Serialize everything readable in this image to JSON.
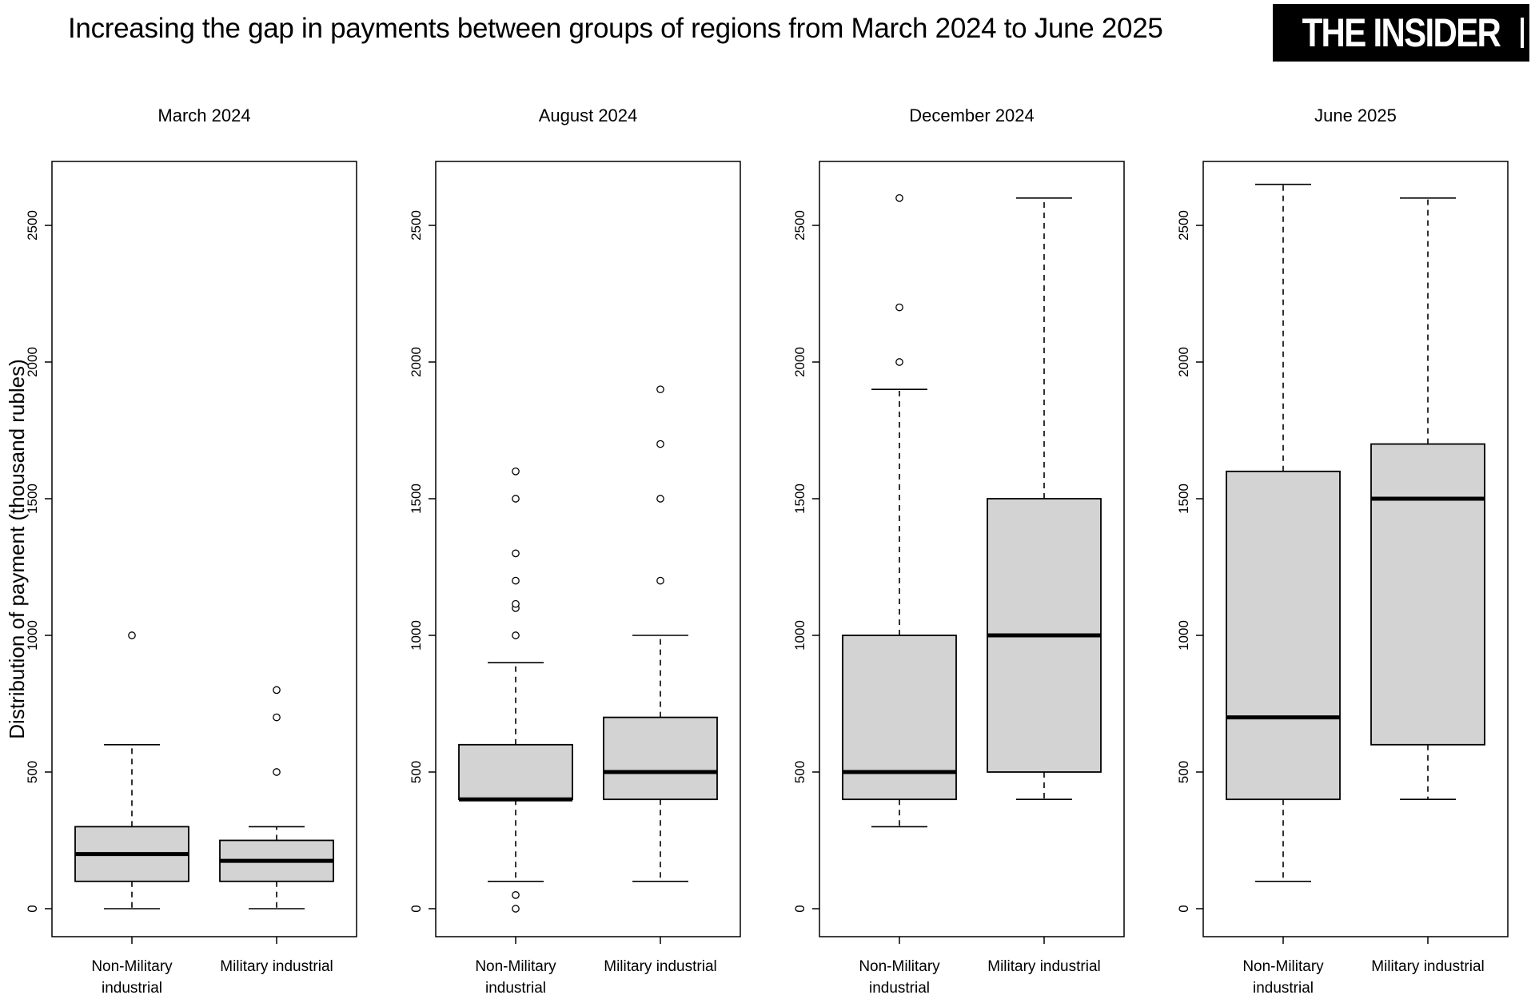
{
  "header": {
    "title": "Increasing the gap in payments between groups of regions from March 2024 to June 2025",
    "logo_text": "THE INSIDER"
  },
  "y_axis": {
    "label": "Distribution of payment (thousand rubles)",
    "ticks": [
      0,
      500,
      1000,
      1500,
      2000,
      2500
    ]
  },
  "chart_data": {
    "type": "boxplot",
    "value_unit": "thousand rubles",
    "categories": [
      "Non-Military industrial",
      "Military industrial"
    ],
    "category_label_lines": [
      [
        "Non-Military",
        "industrial"
      ],
      [
        "Military industrial"
      ]
    ],
    "legend_position": "none",
    "grid": false,
    "panels": [
      {
        "title": "March 2024",
        "boxes": [
          {
            "category": "Non-Military industrial",
            "whisker_low": 0,
            "q1": 100,
            "median": 200,
            "q3": 300,
            "whisker_high": 600,
            "outliers": [
              1000
            ]
          },
          {
            "category": "Military industrial",
            "whisker_low": 0,
            "q1": 100,
            "median": 175,
            "q3": 250,
            "whisker_high": 300,
            "outliers": [
              500,
              700,
              800
            ]
          }
        ]
      },
      {
        "title": "August 2024",
        "boxes": [
          {
            "category": "Non-Military industrial",
            "whisker_low": 100,
            "q1": 400,
            "median": 400,
            "q3": 600,
            "whisker_high": 900,
            "outliers": [
              0,
              50,
              1000,
              1100,
              1115,
              1200,
              1300,
              1500,
              1600
            ]
          },
          {
            "category": "Military industrial",
            "whisker_low": 100,
            "q1": 400,
            "median": 500,
            "q3": 700,
            "whisker_high": 1000,
            "outliers": [
              1200,
              1500,
              1700,
              1900
            ]
          }
        ]
      },
      {
        "title": "December 2024",
        "boxes": [
          {
            "category": "Non-Military industrial",
            "whisker_low": 300,
            "q1": 400,
            "median": 500,
            "q3": 1000,
            "whisker_high": 1900,
            "outliers": [
              2000,
              2200,
              2600
            ]
          },
          {
            "category": "Military industrial",
            "whisker_low": 400,
            "q1": 500,
            "median": 1000,
            "q3": 1500,
            "whisker_high": 2600,
            "outliers": []
          }
        ]
      },
      {
        "title": "June 2025",
        "boxes": [
          {
            "category": "Non-Military industrial",
            "whisker_low": 100,
            "q1": 400,
            "median": 700,
            "q3": 1600,
            "whisker_high": 2650,
            "outliers": []
          },
          {
            "category": "Military industrial",
            "whisker_low": 400,
            "q1": 600,
            "median": 1500,
            "q3": 1700,
            "whisker_high": 2600,
            "outliers": []
          }
        ]
      }
    ]
  },
  "style": {
    "box_fill": "#d3d3d3",
    "stroke": "#000000",
    "background": "#ffffff",
    "logo_bg": "#000000",
    "logo_fg": "#ffffff"
  }
}
